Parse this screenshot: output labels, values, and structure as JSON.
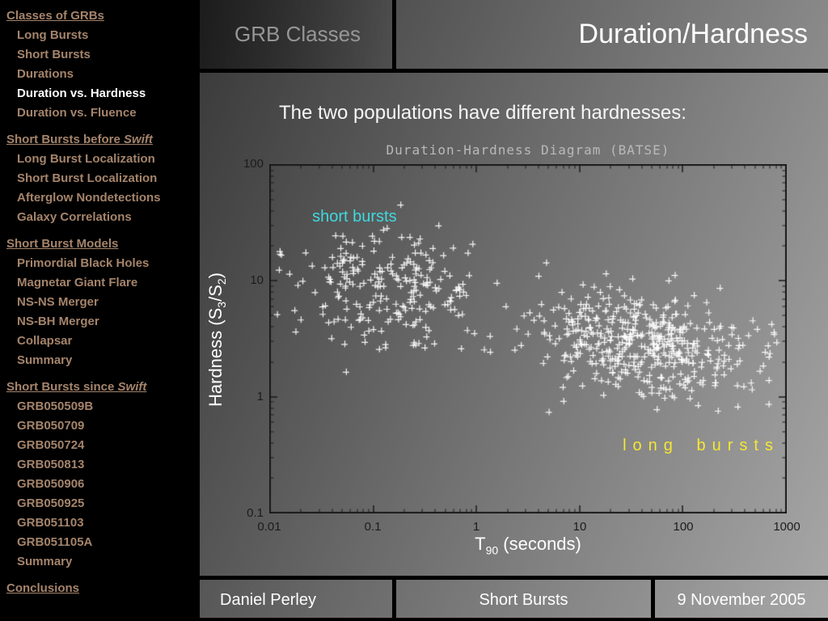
{
  "theme": {
    "sidebar_link_color": "#a5846b",
    "active_link_color": "#ffffff"
  },
  "header": {
    "section_label": "GRB Classes",
    "title": "Duration/Hardness"
  },
  "subtitle": "The two populations have different hardnesses:",
  "footer": {
    "author": "Daniel Perley",
    "topic": "Short Bursts",
    "date": "9 November 2005"
  },
  "sidebar": {
    "sections": [
      {
        "title": "Classes of GRBs",
        "title_italic": "",
        "items": [
          {
            "label": "Long Bursts",
            "active": false
          },
          {
            "label": "Short Bursts",
            "active": false
          },
          {
            "label": "Durations",
            "active": false
          },
          {
            "label": "Duration vs. Hardness",
            "active": true
          },
          {
            "label": "Duration vs. Fluence",
            "active": false
          }
        ]
      },
      {
        "title": "Short Bursts before ",
        "title_italic": "Swift",
        "items": [
          {
            "label": "Long Burst Localization",
            "active": false
          },
          {
            "label": "Short Burst Localization",
            "active": false
          },
          {
            "label": "Afterglow Nondetections",
            "active": false
          },
          {
            "label": "Galaxy Correlations",
            "active": false
          }
        ]
      },
      {
        "title": "Short Burst Models",
        "title_italic": "",
        "items": [
          {
            "label": "Primordial Black Holes",
            "active": false
          },
          {
            "label": "Magnetar Giant Flare",
            "active": false
          },
          {
            "label": "NS-NS Merger",
            "active": false
          },
          {
            "label": "NS-BH Merger",
            "active": false
          },
          {
            "label": "Collapsar",
            "active": false
          },
          {
            "label": "Summary",
            "active": false
          }
        ]
      },
      {
        "title": "Short Bursts since ",
        "title_italic": "Swift",
        "items": [
          {
            "label": "GRB050509B",
            "active": false
          },
          {
            "label": "GRB050709",
            "active": false
          },
          {
            "label": "GRB050724",
            "active": false
          },
          {
            "label": "GRB050813",
            "active": false
          },
          {
            "label": "GRB050906",
            "active": false
          },
          {
            "label": "GRB050925",
            "active": false
          },
          {
            "label": "GRB051103",
            "active": false
          },
          {
            "label": "GRB051105A",
            "active": false
          },
          {
            "label": "Summary",
            "active": false
          }
        ]
      },
      {
        "title": "Conclusions",
        "title_italic": "",
        "items": []
      }
    ]
  },
  "chart_data": {
    "type": "scatter",
    "title": "Duration-Hardness Diagram (BATSE)",
    "xlabel": "T90 (seconds)",
    "xlabel_parts": {
      "pre": "T",
      "sub": "90",
      "post": " (seconds)"
    },
    "ylabel": "Hardness (S3/S2)",
    "ylabel_parts": {
      "pre": "Hardness (S",
      "sub1": "3",
      "mid": "/S",
      "sub2": "2",
      "post": ")"
    },
    "x_scale": "log",
    "y_scale": "log",
    "x_range": [
      0.01,
      1000
    ],
    "y_range": [
      0.1,
      100
    ],
    "x_tick_values": [
      0.01,
      0.1,
      1,
      10,
      100,
      1000
    ],
    "x_tick_labels": [
      "0.01",
      "0.1",
      "1",
      "10",
      "100",
      "1000"
    ],
    "y_tick_values": [
      0.1,
      1,
      10,
      100
    ],
    "y_tick_labels": [
      "0.1",
      "1",
      "10",
      "100"
    ],
    "grid": false,
    "legend": "none",
    "marker": "plus",
    "colors": {
      "marker": "#ffffff",
      "axis": "#1a1a1a",
      "tick_text": "#1c1c1c",
      "title_text": "#b9b9b9"
    },
    "annotations": [
      {
        "text": "short bursts",
        "color": "#3fd9e0",
        "x": 0.026,
        "y": 35,
        "spaced": false
      },
      {
        "text": "long bursts",
        "color": "#f5e733",
        "x": 26,
        "y": 0.38,
        "spaced": true
      }
    ],
    "clusters": [
      {
        "name": "short bursts",
        "n": 235,
        "log_t90_mean": -0.85,
        "log_t90_sd": 0.45,
        "log_hardness_mean": 0.92,
        "log_hardness_sd": 0.27,
        "corr": -0.1
      },
      {
        "name": "long bursts",
        "n": 480,
        "log_t90_mean": 1.62,
        "log_t90_sd": 0.52,
        "log_hardness_mean": 0.44,
        "log_hardness_sd": 0.23,
        "corr": -0.25
      }
    ],
    "seed": 1337
  }
}
